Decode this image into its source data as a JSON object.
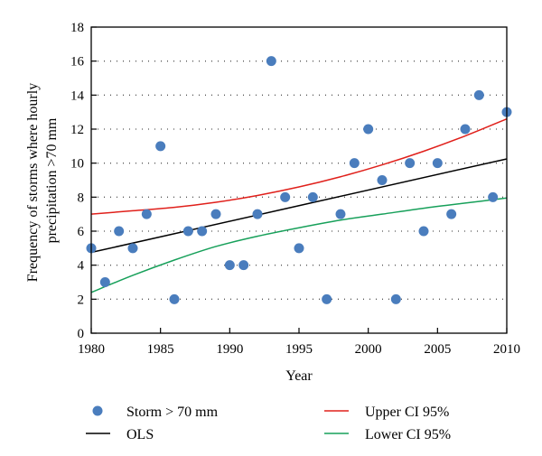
{
  "chart_data": {
    "type": "scatter",
    "xlabel": "Year",
    "ylabel_lines": [
      "Frequency of storms where hourly",
      "precipitation >70 mm"
    ],
    "xlim": [
      1980,
      2010
    ],
    "ylim": [
      0,
      18
    ],
    "x_ticks": [
      1980,
      1985,
      1990,
      1995,
      2000,
      2005,
      2010
    ],
    "y_ticks": [
      0,
      2,
      4,
      6,
      8,
      10,
      12,
      14,
      16,
      18
    ],
    "grid": "horizontal dotted",
    "legend_position": "bottom",
    "scatter_series": {
      "name": "Storm > 70 mm",
      "color": "#4a7dbd",
      "points": [
        [
          1980,
          5
        ],
        [
          1981,
          3
        ],
        [
          1982,
          6
        ],
        [
          1983,
          5
        ],
        [
          1984,
          7
        ],
        [
          1985,
          11
        ],
        [
          1986,
          2
        ],
        [
          1987,
          6
        ],
        [
          1988,
          6
        ],
        [
          1989,
          7
        ],
        [
          1990,
          4
        ],
        [
          1991,
          4
        ],
        [
          1992,
          7
        ],
        [
          1993,
          16
        ],
        [
          1994,
          8
        ],
        [
          1995,
          5
        ],
        [
          1996,
          8
        ],
        [
          1997,
          2
        ],
        [
          1998,
          7
        ],
        [
          1999,
          10
        ],
        [
          2000,
          12
        ],
        [
          2001,
          9
        ],
        [
          2002,
          2
        ],
        [
          2003,
          10
        ],
        [
          2004,
          6
        ],
        [
          2005,
          10
        ],
        [
          2006,
          7
        ],
        [
          2007,
          12
        ],
        [
          2008,
          14
        ],
        [
          2009,
          8
        ],
        [
          2010,
          13
        ]
      ]
    },
    "line_series": [
      {
        "name": "OLS",
        "color": "#000000",
        "points": [
          [
            1980,
            4.75
          ],
          [
            2010,
            10.25
          ]
        ]
      },
      {
        "name": "Upper CI 95%",
        "color": "#e0201b",
        "points": [
          [
            1980,
            7.0
          ],
          [
            1983,
            7.2
          ],
          [
            1986,
            7.4
          ],
          [
            1989,
            7.7
          ],
          [
            1992,
            8.1
          ],
          [
            1995,
            8.6
          ],
          [
            1998,
            9.2
          ],
          [
            2001,
            9.9
          ],
          [
            2004,
            10.7
          ],
          [
            2007,
            11.6
          ],
          [
            2010,
            12.6
          ]
        ]
      },
      {
        "name": "Lower CI 95%",
        "color": "#17a05a",
        "points": [
          [
            1980,
            2.4
          ],
          [
            1983,
            3.4
          ],
          [
            1986,
            4.3
          ],
          [
            1989,
            5.1
          ],
          [
            1992,
            5.7
          ],
          [
            1995,
            6.2
          ],
          [
            1998,
            6.65
          ],
          [
            2001,
            7.0
          ],
          [
            2004,
            7.35
          ],
          [
            2007,
            7.65
          ],
          [
            2010,
            7.95
          ]
        ]
      }
    ]
  }
}
